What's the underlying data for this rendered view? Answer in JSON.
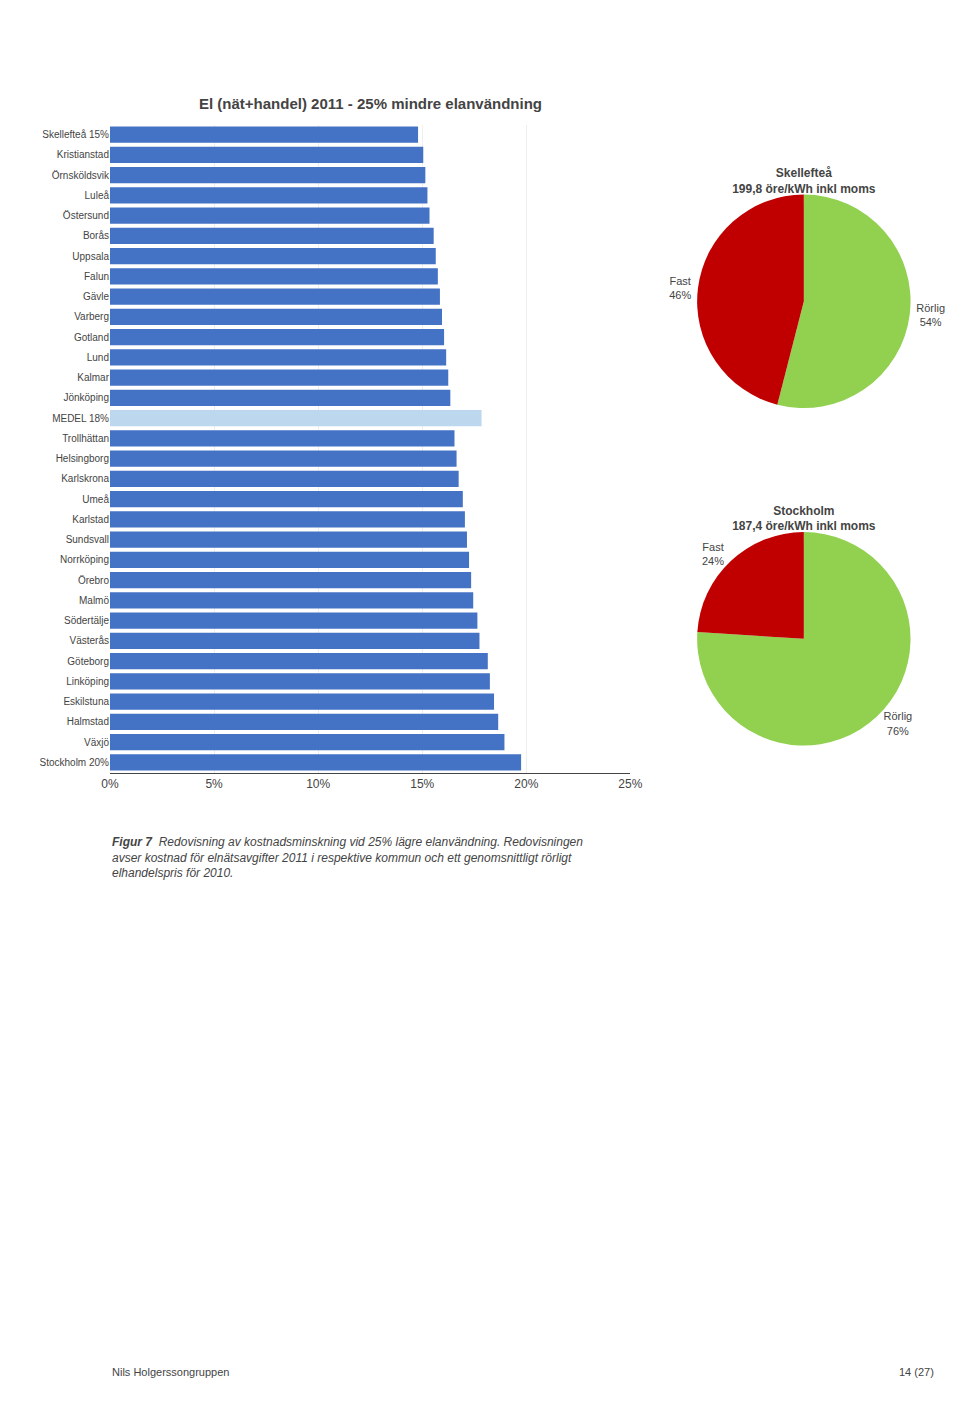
{
  "chart_data": [
    {
      "type": "bar",
      "title": "El (nät+handel) 2011 - 25% mindre elanvändning",
      "orientation": "horizontal",
      "categories": [
        "Skellefteå 15%",
        "Kristianstad",
        "Örnsköldsvik",
        "Luleå",
        "Östersund",
        "Borås",
        "Uppsala",
        "Falun",
        "Gävle",
        "Varberg",
        "Gotland",
        "Lund",
        "Kalmar",
        "Jönköping",
        "MEDEL 18%",
        "Trollhättan",
        "Helsingborg",
        "Karlskrona",
        "Umeå",
        "Karlstad",
        "Sundsvall",
        "Norrköping",
        "Örebro",
        "Malmö",
        "Södertälje",
        "Västerås",
        "Göteborg",
        "Linköping",
        "Eskilstuna",
        "Halmstad",
        "Växjö",
        "Stockholm 20%"
      ],
      "values": [
        14.8,
        15.05,
        15.15,
        15.25,
        15.35,
        15.55,
        15.65,
        15.75,
        15.85,
        15.95,
        16.05,
        16.15,
        16.25,
        16.35,
        17.85,
        16.55,
        16.65,
        16.75,
        16.95,
        17.05,
        17.15,
        17.25,
        17.35,
        17.45,
        17.65,
        17.75,
        18.15,
        18.25,
        18.45,
        18.65,
        18.95,
        19.75
      ],
      "colors": [
        "#4472C4",
        "#4472C4",
        "#4472C4",
        "#4472C4",
        "#4472C4",
        "#4472C4",
        "#4472C4",
        "#4472C4",
        "#4472C4",
        "#4472C4",
        "#4472C4",
        "#4472C4",
        "#4472C4",
        "#4472C4",
        "#BDD7EE",
        "#4472C4",
        "#4472C4",
        "#4472C4",
        "#4472C4",
        "#4472C4",
        "#4472C4",
        "#4472C4",
        "#4472C4",
        "#4472C4",
        "#4472C4",
        "#4472C4",
        "#4472C4",
        "#4472C4",
        "#4472C4",
        "#4472C4",
        "#4472C4",
        "#4472C4"
      ],
      "xlim": [
        0,
        25
      ],
      "xticks": [
        {
          "value": 0,
          "label": "0%"
        },
        {
          "value": 5,
          "label": "5%"
        },
        {
          "value": 10,
          "label": "10%"
        },
        {
          "value": 15,
          "label": "15%"
        },
        {
          "value": 20,
          "label": "20%"
        },
        {
          "value": 25,
          "label": "25%"
        }
      ],
      "grid": true,
      "annotations": [
        "Figur 7",
        "Redovisning av kostnadsminskning vid 25% lägre elanvändning. Redovisningen\navser kostnad för elnätsavgifter 2011 i respektive kommun och ett genomsnittligt rörligt\nelhandelspris för 2010.",
        "Nils Holgerssongruppen",
        "14 (27)"
      ]
    },
    {
      "type": "pie",
      "title": "Skellefteå",
      "subtitle": "199,8 öre/kWh inkl moms",
      "categories": [
        "Rörlig",
        "Fast"
      ],
      "values": [
        54,
        46
      ],
      "value_labels": [
        "54%",
        "46%"
      ],
      "data_labels": true,
      "colors": [
        "#92D050",
        "#C00000"
      ]
    },
    {
      "type": "pie",
      "title": "Stockholm",
      "subtitle": "187,4 öre/kWh inkl moms",
      "categories": [
        "Rörlig",
        "Fast"
      ],
      "values": [
        76,
        24
      ],
      "value_labels": [
        "76%",
        "24%"
      ],
      "data_labels": true,
      "colors": [
        "#92D050",
        "#C00000"
      ]
    }
  ]
}
